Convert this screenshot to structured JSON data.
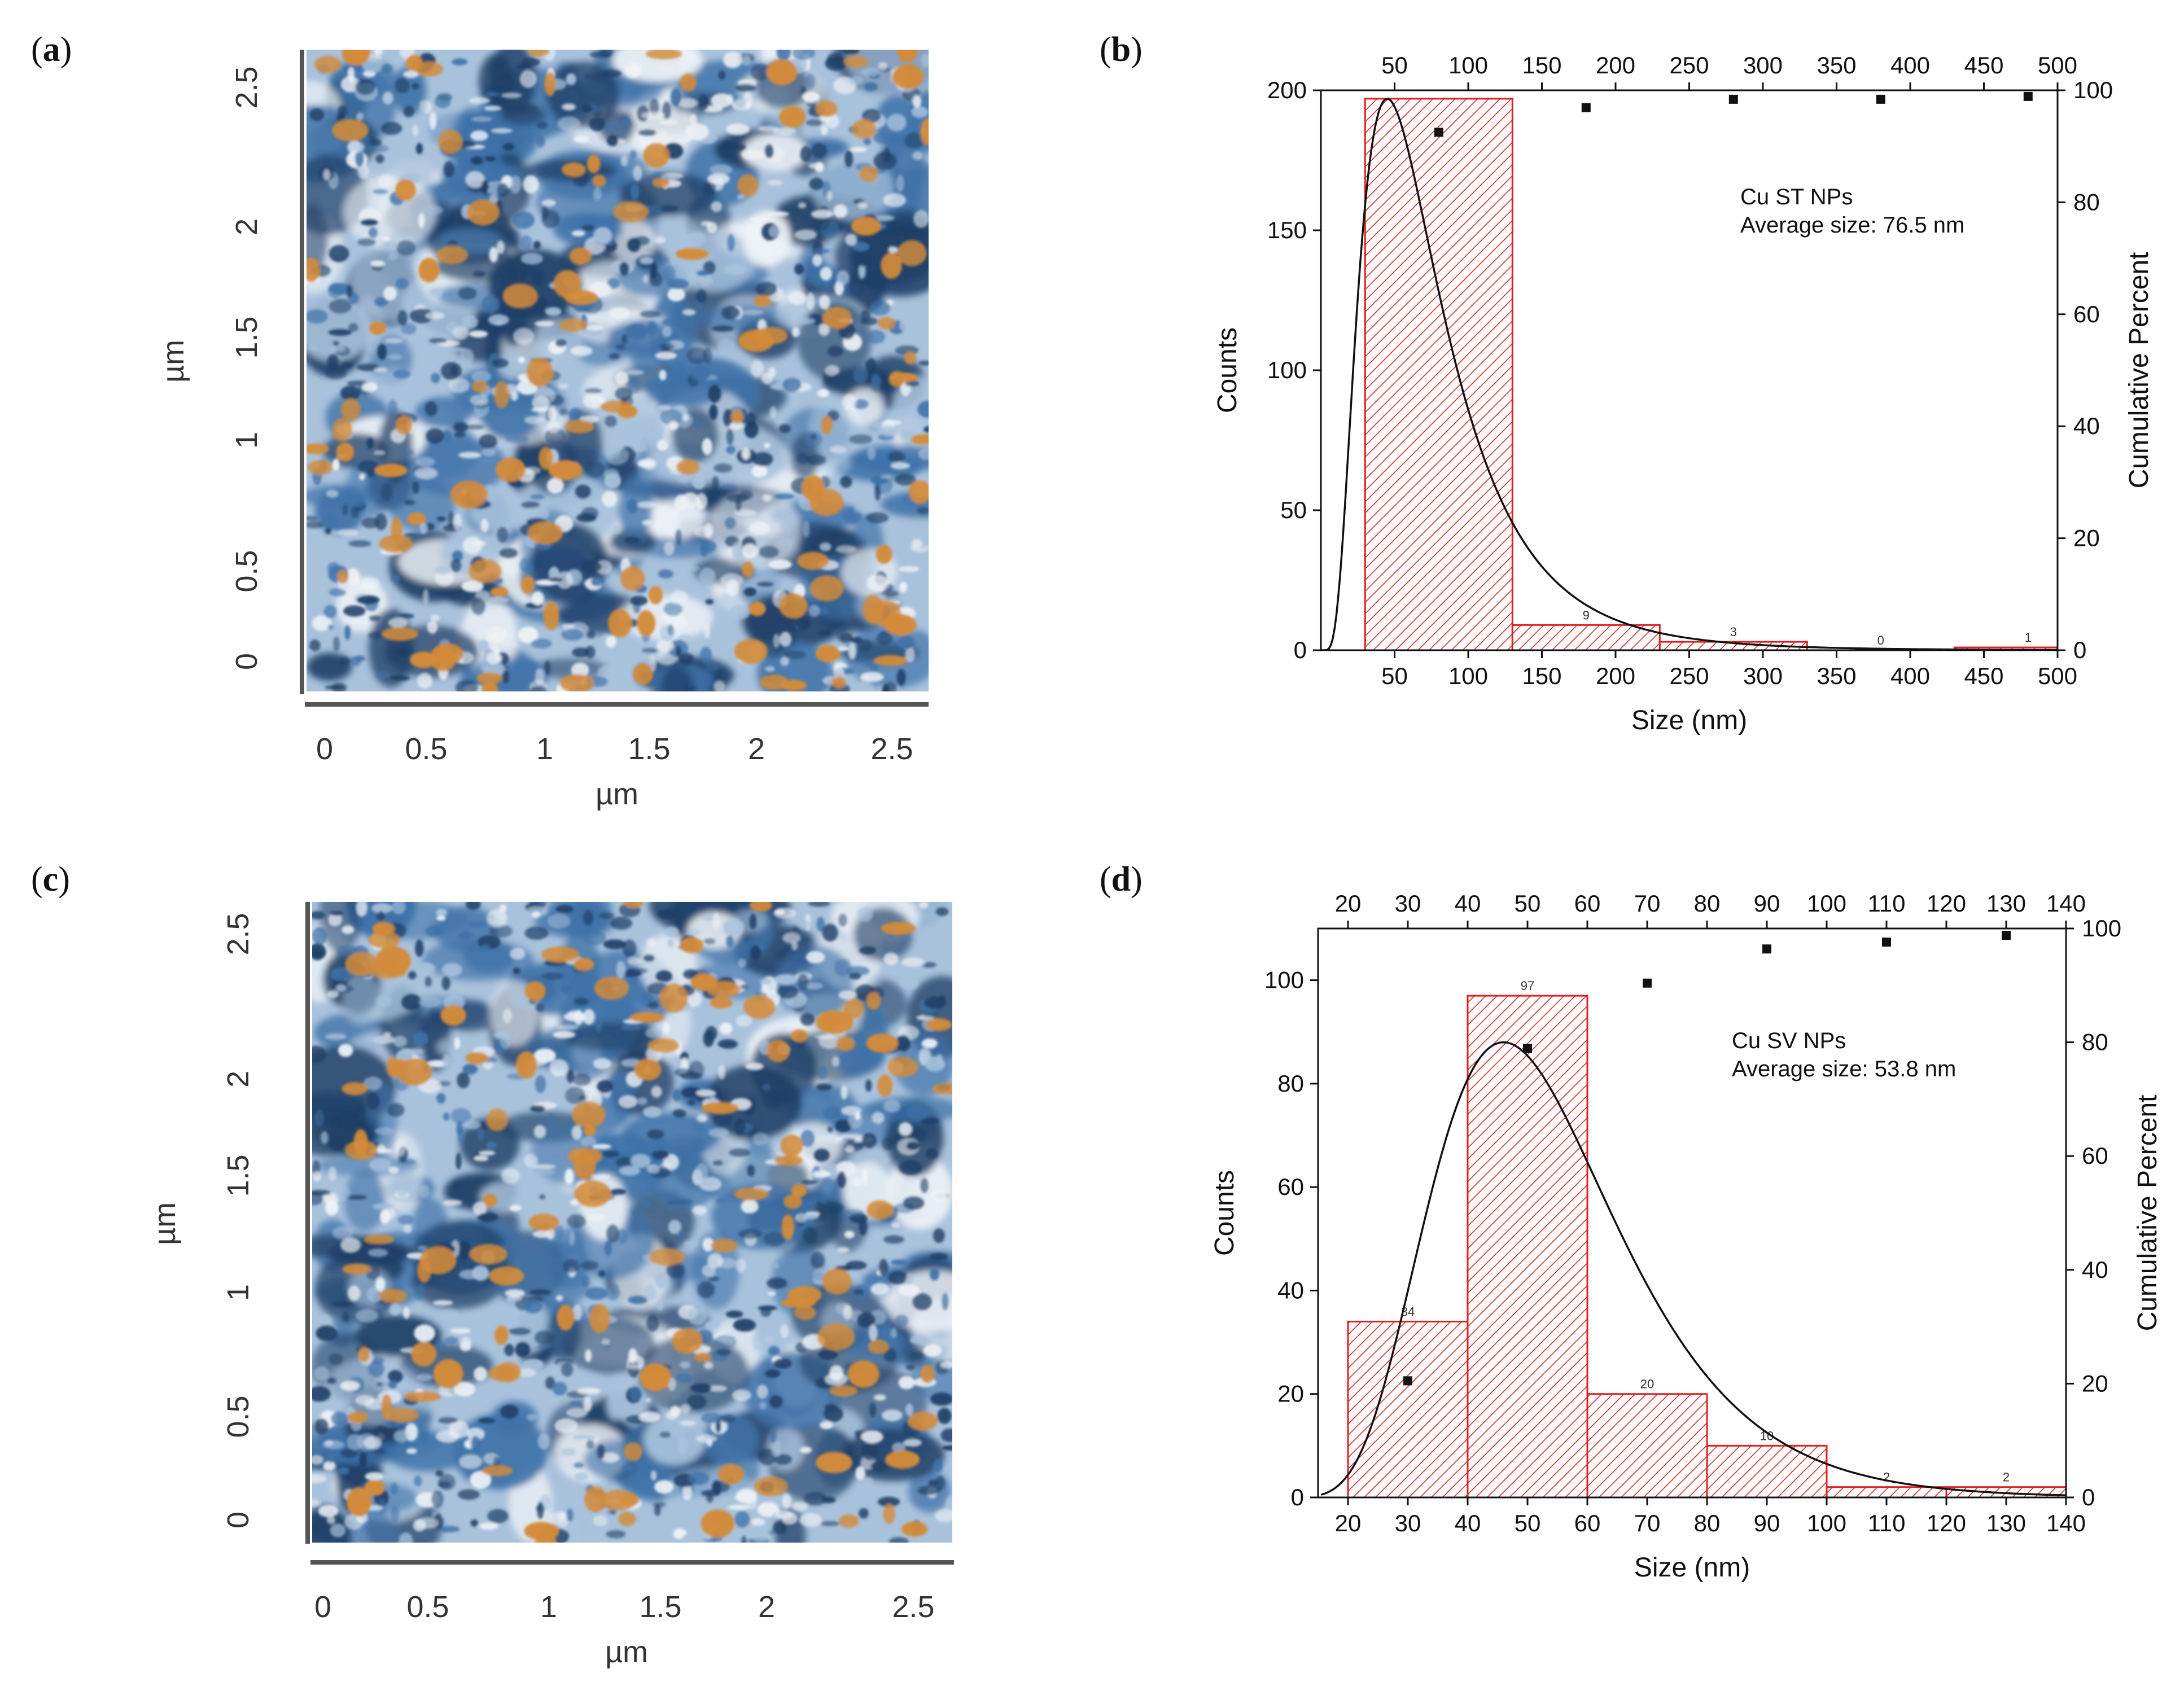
{
  "figure": {
    "panels": [
      {
        "label_open": "(",
        "label_letter": "a",
        "label_close": ")"
      },
      {
        "label_open": "(",
        "label_letter": "b",
        "label_close": ")"
      },
      {
        "label_open": "(",
        "label_letter": "c",
        "label_close": ")"
      },
      {
        "label_open": "(",
        "label_letter": "d",
        "label_close": ")"
      }
    ]
  },
  "afm": [
    {
      "x_label": "µm",
      "y_label": "µm",
      "ticks": [
        "0",
        "0.5",
        "1",
        "1.5",
        "2",
        "2.5"
      ],
      "colors": {
        "dark": "#1f3f66",
        "blue": "#3f72a8",
        "light": "#a9c2dc",
        "white": "#eef2f6",
        "orange": "#d38b3a"
      }
    },
    {
      "x_label": "µm",
      "y_label": "µm",
      "ticks": [
        "0",
        "0.5",
        "1",
        "1.5",
        "2",
        "2.5"
      ],
      "colors": {
        "dark": "#1f3f66",
        "blue": "#3f72a8",
        "light": "#a9c2dc",
        "white": "#eef2f6",
        "orange": "#d38b3a"
      }
    }
  ],
  "chart_data": [
    {
      "type": "bar",
      "title": "",
      "annotation": [
        "Cu ST NPs",
        "Average size: 76.5 nm"
      ],
      "xlabel": "Size (nm)",
      "ylabel": "Counts",
      "y2label": "Cumulative Percent",
      "xlim": [
        0,
        500
      ],
      "ylim": [
        0,
        200
      ],
      "y2lim": [
        0,
        100
      ],
      "x_ticks": [
        50,
        100,
        150,
        200,
        250,
        300,
        350,
        400,
        450,
        500
      ],
      "y_ticks": [
        0,
        50,
        100,
        150,
        200
      ],
      "y2_ticks": [
        0,
        20,
        40,
        60,
        80,
        100
      ],
      "bins": [
        [
          30,
          130
        ],
        [
          130,
          230
        ],
        [
          230,
          330
        ],
        [
          330,
          430
        ],
        [
          430,
          530
        ]
      ],
      "values": [
        197,
        9,
        3,
        0,
        1
      ],
      "bar_labels": [
        "",
        "9",
        "3",
        "0",
        "1"
      ],
      "cumulative": {
        "x": [
          80,
          180,
          280,
          380,
          480
        ],
        "y": [
          92.5,
          96.9,
          98.4,
          98.4,
          98.9
        ]
      },
      "fit_curve": {
        "type": "lognormal",
        "peak_x": 45,
        "peak_y": 197
      },
      "colors": {
        "bar": "#e02020",
        "curve": "#111111",
        "points": "#111111"
      }
    },
    {
      "type": "bar",
      "title": "",
      "annotation": [
        "Cu SV NPs",
        "Average size: 53.8 nm"
      ],
      "xlabel": "Size (nm)",
      "ylabel": "Counts",
      "y2label": "Cumulative Percent",
      "xlim": [
        15,
        140
      ],
      "ylim": [
        0,
        110
      ],
      "y2lim": [
        0,
        100
      ],
      "x_ticks": [
        20,
        30,
        40,
        50,
        60,
        70,
        80,
        90,
        100,
        110,
        120,
        130,
        140
      ],
      "y_ticks": [
        0,
        20,
        40,
        60,
        80,
        100
      ],
      "y2_ticks": [
        0,
        20,
        40,
        60,
        80,
        100
      ],
      "bins": [
        [
          20,
          40
        ],
        [
          40,
          60
        ],
        [
          60,
          80
        ],
        [
          80,
          100
        ],
        [
          100,
          120
        ],
        [
          120,
          140
        ]
      ],
      "values": [
        34,
        97,
        20,
        10,
        2,
        2
      ],
      "bar_labels": [
        "34",
        "97",
        "20",
        "10",
        "2",
        "2"
      ],
      "cumulative": {
        "x": [
          30,
          50,
          70,
          90,
          110,
          130
        ],
        "y": [
          20.5,
          78.9,
          90.4,
          96.4,
          97.6,
          98.8
        ]
      },
      "fit_curve": {
        "type": "lognormal",
        "peak_x": 46,
        "peak_y": 88
      },
      "colors": {
        "bar": "#e02020",
        "curve": "#111111",
        "points": "#111111"
      }
    }
  ]
}
